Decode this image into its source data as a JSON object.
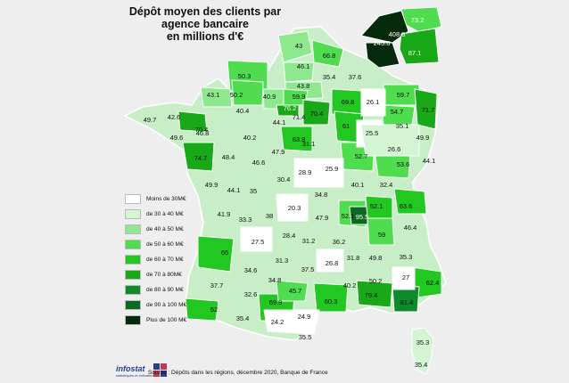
{
  "title": "Dépôt moyen des clients par\nagence bancaire\nen millions d'€",
  "source": "Source : Dépôts dans les régions, décembre 2020, Banque de France",
  "logo": {
    "name": "infostat",
    "tagline": "statistiques et indicateurs"
  },
  "legend": [
    {
      "label": "Moins de 30M€",
      "color": "#ffffff"
    },
    {
      "label": "de 30 à 40 M€",
      "color": "#d4f5d4"
    },
    {
      "label": "de 40 à 50 M€",
      "color": "#8ee88e"
    },
    {
      "label": "de 50 à 60 M€",
      "color": "#4fdc4f"
    },
    {
      "label": "de 60 à 70 M€",
      "color": "#22c722"
    },
    {
      "label": "de 70 à 80M€",
      "color": "#18a818"
    },
    {
      "label": "de 80 à 90 M€",
      "color": "#0f8a2a"
    },
    {
      "label": "de 90 à 100 M€",
      "color": "#0a6a1e"
    },
    {
      "label": "Plus de 100 M€",
      "color": "#062a0c"
    }
  ],
  "values": [
    {
      "v": "43"
    },
    {
      "v": "66.8"
    },
    {
      "v": "46.1"
    },
    {
      "v": "35.4"
    },
    {
      "v": "37.6"
    },
    {
      "v": "50.3"
    },
    {
      "v": "43.8"
    },
    {
      "v": "43.1"
    },
    {
      "v": "50.2"
    },
    {
      "v": "40.9"
    },
    {
      "v": "59.9"
    },
    {
      "v": "76.2"
    },
    {
      "v": "71.4"
    },
    {
      "v": "70.4"
    },
    {
      "v": "69.8"
    },
    {
      "v": "26.1"
    },
    {
      "v": "59.7"
    },
    {
      "v": "54.7"
    },
    {
      "v": "71.7"
    },
    {
      "v": "49.7"
    },
    {
      "v": "42.6"
    },
    {
      "v": "70.4"
    },
    {
      "v": "40.4"
    },
    {
      "v": "44.1"
    },
    {
      "v": "61"
    },
    {
      "v": "35.1"
    },
    {
      "v": "49.6"
    },
    {
      "v": "46.8"
    },
    {
      "v": "40.2"
    },
    {
      "v": "63.8"
    },
    {
      "v": "25.5"
    },
    {
      "v": "49.9"
    },
    {
      "v": "31.1"
    },
    {
      "v": "74.7"
    },
    {
      "v": "48.4"
    },
    {
      "v": "47.9"
    },
    {
      "v": "46.6"
    },
    {
      "v": "26.6"
    },
    {
      "v": "52.7"
    },
    {
      "v": "53.6"
    },
    {
      "v": "44.1"
    },
    {
      "v": "28.9"
    },
    {
      "v": "25.9"
    },
    {
      "v": "49.9"
    },
    {
      "v": "44.1"
    },
    {
      "v": "35"
    },
    {
      "v": "30.4"
    },
    {
      "v": "40.1"
    },
    {
      "v": "32.4"
    },
    {
      "v": "34.8"
    },
    {
      "v": "41.9"
    },
    {
      "v": "33.3"
    },
    {
      "v": "38"
    },
    {
      "v": "20.3"
    },
    {
      "v": "47.9"
    },
    {
      "v": "52.1"
    },
    {
      "v": "95.5"
    },
    {
      "v": "52.1"
    },
    {
      "v": "63.6"
    },
    {
      "v": "46.4"
    },
    {
      "v": "27.5"
    },
    {
      "v": "28.4"
    },
    {
      "v": "59"
    },
    {
      "v": "65"
    },
    {
      "v": "31.2"
    },
    {
      "v": "36.2"
    },
    {
      "v": "31.8"
    },
    {
      "v": "49.8"
    },
    {
      "v": "35.3"
    },
    {
      "v": "34.6"
    },
    {
      "v": "31.3"
    },
    {
      "v": "37.5"
    },
    {
      "v": "26.8"
    },
    {
      "v": "37.7"
    },
    {
      "v": "34.8"
    },
    {
      "v": "27"
    },
    {
      "v": "62.4"
    },
    {
      "v": "32.6"
    },
    {
      "v": "45.7"
    },
    {
      "v": "40.2"
    },
    {
      "v": "50.2"
    },
    {
      "v": "60.3"
    },
    {
      "v": "79.4"
    },
    {
      "v": "81.4"
    },
    {
      "v": "52"
    },
    {
      "v": "69.9"
    },
    {
      "v": "35.4"
    },
    {
      "v": "24.2"
    },
    {
      "v": "24.9"
    },
    {
      "v": "35.5"
    },
    {
      "v": "35.3"
    },
    {
      "v": "35.4"
    },
    {
      "v": "73.2"
    },
    {
      "v": "408.8"
    },
    {
      "v": "245.6"
    },
    {
      "v": "87.1"
    }
  ]
}
